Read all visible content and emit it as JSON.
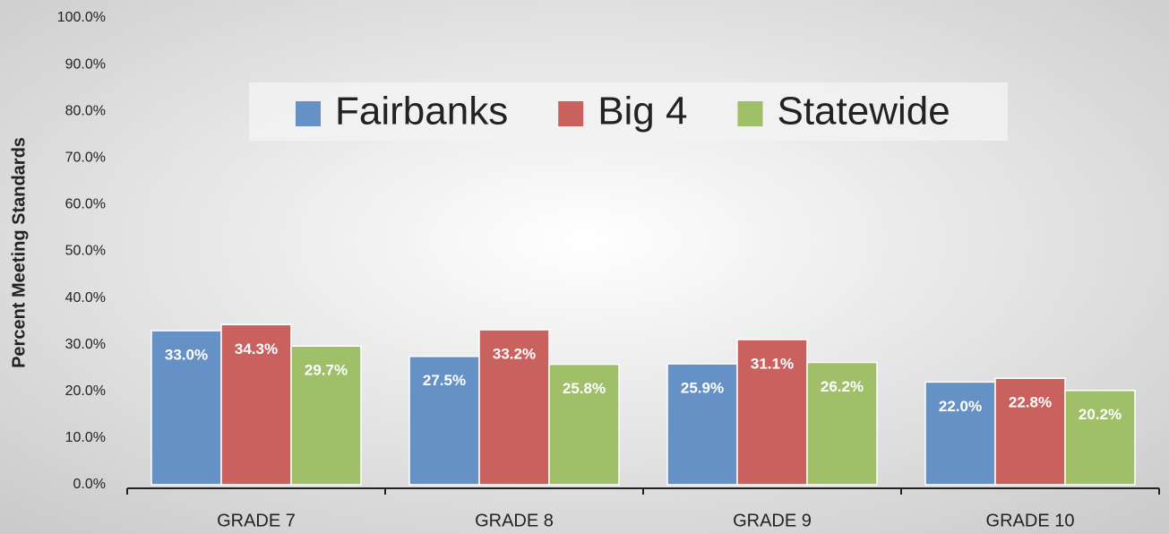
{
  "chart_data": {
    "type": "bar",
    "y_axis_label": "Percent Meeting Standards",
    "categories": [
      "GRADE 7",
      "GRADE 8",
      "GRADE 9",
      "GRADE 10"
    ],
    "series": [
      {
        "name": "Fairbanks",
        "color": "#6591c7",
        "values": [
          33.0,
          27.5,
          25.9,
          22.0
        ],
        "value_labels": [
          "33.0%",
          "27.5%",
          "25.9%",
          "22.0%"
        ]
      },
      {
        "name": "Big 4",
        "color": "#c9625f",
        "values": [
          34.3,
          33.2,
          31.1,
          22.8
        ],
        "value_labels": [
          "34.3%",
          "33.2%",
          "31.1%",
          "22.8%"
        ]
      },
      {
        "name": "Statewide",
        "color": "#9fbf68",
        "values": [
          29.7,
          25.8,
          26.2,
          20.2
        ],
        "value_labels": [
          "29.7%",
          "25.8%",
          "26.2%",
          "20.2%"
        ]
      }
    ],
    "ylim": [
      0,
      100
    ],
    "yticks": [
      {
        "value": 0,
        "label": "0.0%"
      },
      {
        "value": 10,
        "label": "10.0%"
      },
      {
        "value": 20,
        "label": "20.0%"
      },
      {
        "value": 30,
        "label": "30.0%"
      },
      {
        "value": 40,
        "label": "40.0%"
      },
      {
        "value": 50,
        "label": "50.0%"
      },
      {
        "value": 60,
        "label": "60.0%"
      },
      {
        "value": 70,
        "label": "70.0%"
      },
      {
        "value": 80,
        "label": "80.0%"
      },
      {
        "value": 90,
        "label": "90.0%"
      },
      {
        "value": 100,
        "label": "100.0%"
      }
    ],
    "legend": "top"
  }
}
